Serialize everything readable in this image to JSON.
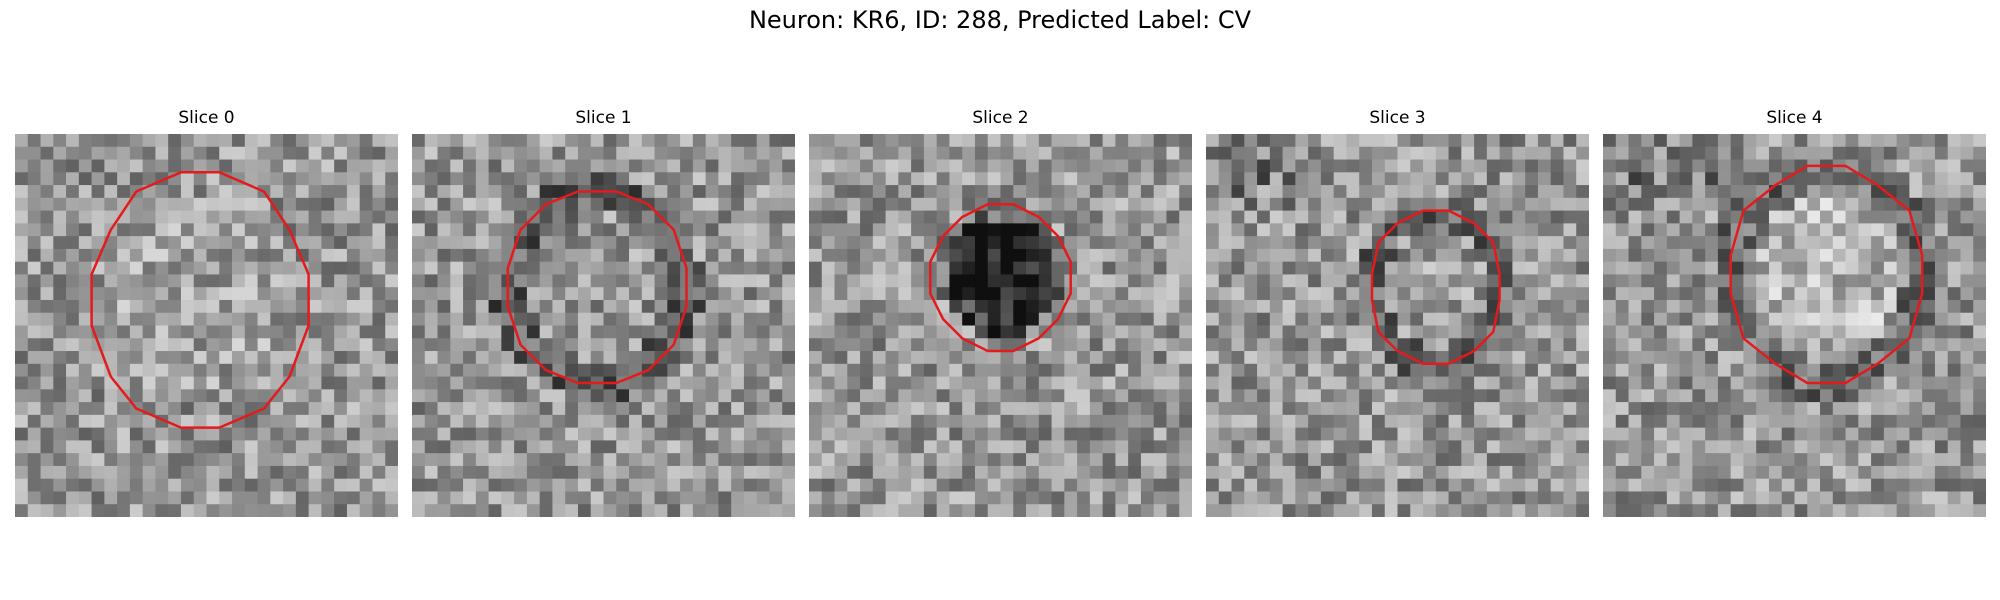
{
  "figure": {
    "title": "Neuron: KR6, ID: 288, Predicted Label: CV"
  },
  "panels": [
    {
      "title": "Slice 0",
      "contour_color": "#e41a1c",
      "center_tone": "light"
    },
    {
      "title": "Slice 1",
      "contour_color": "#e41a1c",
      "center_tone": "mixed"
    },
    {
      "title": "Slice 2",
      "contour_color": "#e41a1c",
      "center_tone": "dark"
    },
    {
      "title": "Slice 3",
      "contour_color": "#e41a1c",
      "center_tone": "mixed"
    },
    {
      "title": "Slice 4",
      "contour_color": "#e41a1c",
      "center_tone": "light"
    }
  ],
  "image": {
    "colormap": "gray",
    "grid": 30
  }
}
